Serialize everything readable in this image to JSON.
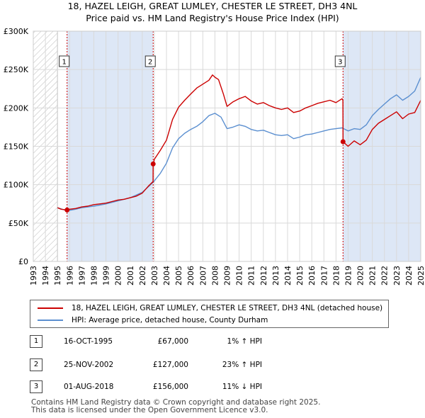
{
  "title_line1": "18, HAZEL LEIGH, GREAT LUMLEY, CHESTER LE STREET, DH3 4NL",
  "title_line2": "Price paid vs. HM Land Registry's House Price Index (HPI)",
  "colors": {
    "property": "#cc0000",
    "hpi": "#5b8fd0",
    "shade": "#dde7f6",
    "grid": "#d9d9d9",
    "marker_line": "#cc0000"
  },
  "chart_data": {
    "type": "line",
    "title": "18, HAZEL LEIGH, GREAT LUMLEY, CHESTER LE STREET, DH3 4NL — Price paid vs. HM Land Registry's House Price Index (HPI)",
    "xlabel": "",
    "ylabel": "",
    "xlim": [
      1993,
      2025
    ],
    "ylim": [
      0,
      300000
    ],
    "x_ticks": [
      "1993",
      "1994",
      "1995",
      "1996",
      "1997",
      "1998",
      "1999",
      "2000",
      "2001",
      "2002",
      "2003",
      "2004",
      "2005",
      "2006",
      "2007",
      "2008",
      "2009",
      "2010",
      "2011",
      "2012",
      "2013",
      "2014",
      "2015",
      "2016",
      "2017",
      "2018",
      "2019",
      "2020",
      "2021",
      "2022",
      "2023",
      "2024",
      "2025"
    ],
    "y_ticks": [
      {
        "value": 0,
        "label": "£0"
      },
      {
        "value": 50000,
        "label": "£50K"
      },
      {
        "value": 100000,
        "label": "£100K"
      },
      {
        "value": 150000,
        "label": "£150K"
      },
      {
        "value": 200000,
        "label": "£200K"
      },
      {
        "value": 250000,
        "label": "£250K"
      },
      {
        "value": 300000,
        "label": "£300K"
      }
    ],
    "hatched_range": [
      1993,
      1995.0
    ],
    "shaded_ranges": [
      [
        1995.79,
        2002.9
      ],
      [
        2018.58,
        2025
      ]
    ],
    "sale_markers": [
      {
        "label": "1",
        "x": 1995.79,
        "y": 67000
      },
      {
        "label": "2",
        "x": 2002.9,
        "y": 127000
      },
      {
        "label": "3",
        "x": 2018.58,
        "y": 156000
      }
    ],
    "series": [
      {
        "name": "18, HAZEL LEIGH, GREAT LUMLEY, CHESTER LE STREET, DH3 4NL (detached house)",
        "color": "#cc0000",
        "points": [
          [
            1995.0,
            70000
          ],
          [
            1995.3,
            68000
          ],
          [
            1995.79,
            67000
          ],
          [
            1996.0,
            68000
          ],
          [
            1996.5,
            69000
          ],
          [
            1997.0,
            71000
          ],
          [
            1997.5,
            72000
          ],
          [
            1998.0,
            74000
          ],
          [
            1998.5,
            75000
          ],
          [
            1999.0,
            76000
          ],
          [
            1999.5,
            78000
          ],
          [
            2000.0,
            80000
          ],
          [
            2000.5,
            81000
          ],
          [
            2001.0,
            83000
          ],
          [
            2001.5,
            85000
          ],
          [
            2002.0,
            89000
          ],
          [
            2002.5,
            98000
          ],
          [
            2002.89,
            104000
          ],
          [
            2002.9,
            127000
          ],
          [
            2003.0,
            133000
          ],
          [
            2003.5,
            145000
          ],
          [
            2004.0,
            158000
          ],
          [
            2004.5,
            185000
          ],
          [
            2005.0,
            201000
          ],
          [
            2005.5,
            210000
          ],
          [
            2006.0,
            218000
          ],
          [
            2006.5,
            226000
          ],
          [
            2007.0,
            231000
          ],
          [
            2007.5,
            236000
          ],
          [
            2007.8,
            243000
          ],
          [
            2008.0,
            240000
          ],
          [
            2008.3,
            237000
          ],
          [
            2008.7,
            218000
          ],
          [
            2009.0,
            202000
          ],
          [
            2009.5,
            208000
          ],
          [
            2010.0,
            212000
          ],
          [
            2010.5,
            215000
          ],
          [
            2011.0,
            209000
          ],
          [
            2011.5,
            205000
          ],
          [
            2012.0,
            207000
          ],
          [
            2012.5,
            203000
          ],
          [
            2013.0,
            200000
          ],
          [
            2013.5,
            198000
          ],
          [
            2014.0,
            200000
          ],
          [
            2014.5,
            194000
          ],
          [
            2015.0,
            196000
          ],
          [
            2015.5,
            200000
          ],
          [
            2016.0,
            203000
          ],
          [
            2016.5,
            206000
          ],
          [
            2017.0,
            208000
          ],
          [
            2017.5,
            210000
          ],
          [
            2018.0,
            207000
          ],
          [
            2018.5,
            212000
          ],
          [
            2018.57,
            210000
          ],
          [
            2018.58,
            156000
          ],
          [
            2019.0,
            150000
          ],
          [
            2019.5,
            157000
          ],
          [
            2020.0,
            152000
          ],
          [
            2020.5,
            158000
          ],
          [
            2021.0,
            172000
          ],
          [
            2021.5,
            180000
          ],
          [
            2022.0,
            185000
          ],
          [
            2022.5,
            190000
          ],
          [
            2023.0,
            195000
          ],
          [
            2023.5,
            186000
          ],
          [
            2024.0,
            192000
          ],
          [
            2024.5,
            194000
          ],
          [
            2025.0,
            210000
          ]
        ]
      },
      {
        "name": "HPI: Average price, detached house, County Durham",
        "color": "#5b8fd0",
        "points": [
          [
            1995.0,
            70000
          ],
          [
            1995.79,
            66000
          ],
          [
            1996.5,
            68000
          ],
          [
            1997.0,
            70000
          ],
          [
            1998.0,
            72000
          ],
          [
            1999.0,
            75000
          ],
          [
            2000.0,
            79000
          ],
          [
            2001.0,
            83000
          ],
          [
            2002.0,
            90000
          ],
          [
            2002.9,
            103000
          ],
          [
            2003.5,
            115000
          ],
          [
            2004.0,
            128000
          ],
          [
            2004.5,
            148000
          ],
          [
            2005.0,
            160000
          ],
          [
            2005.5,
            167000
          ],
          [
            2006.0,
            172000
          ],
          [
            2006.5,
            176000
          ],
          [
            2007.0,
            182000
          ],
          [
            2007.5,
            190000
          ],
          [
            2008.0,
            193000
          ],
          [
            2008.5,
            188000
          ],
          [
            2009.0,
            173000
          ],
          [
            2009.5,
            175000
          ],
          [
            2010.0,
            178000
          ],
          [
            2010.5,
            176000
          ],
          [
            2011.0,
            172000
          ],
          [
            2011.5,
            170000
          ],
          [
            2012.0,
            171000
          ],
          [
            2012.5,
            168000
          ],
          [
            2013.0,
            165000
          ],
          [
            2013.5,
            164000
          ],
          [
            2014.0,
            165000
          ],
          [
            2014.5,
            160000
          ],
          [
            2015.0,
            162000
          ],
          [
            2015.5,
            165000
          ],
          [
            2016.0,
            166000
          ],
          [
            2016.5,
            168000
          ],
          [
            2017.0,
            170000
          ],
          [
            2017.5,
            172000
          ],
          [
            2018.0,
            173000
          ],
          [
            2018.5,
            174000
          ],
          [
            2019.0,
            170000
          ],
          [
            2019.5,
            173000
          ],
          [
            2020.0,
            172000
          ],
          [
            2020.5,
            178000
          ],
          [
            2021.0,
            190000
          ],
          [
            2021.5,
            198000
          ],
          [
            2022.0,
            205000
          ],
          [
            2022.5,
            212000
          ],
          [
            2023.0,
            217000
          ],
          [
            2023.5,
            210000
          ],
          [
            2024.0,
            215000
          ],
          [
            2024.5,
            222000
          ],
          [
            2025.0,
            240000
          ]
        ]
      }
    ]
  },
  "legend": [
    {
      "label": "18, HAZEL LEIGH, GREAT LUMLEY, CHESTER LE STREET, DH3 4NL (detached house)",
      "color": "#cc0000"
    },
    {
      "label": "HPI: Average price, detached house, County Durham",
      "color": "#5b8fd0"
    }
  ],
  "sales": [
    {
      "num": "1",
      "date": "16-OCT-1995",
      "price": "£67,000",
      "hpi": "1% ↑ HPI"
    },
    {
      "num": "2",
      "date": "25-NOV-2002",
      "price": "£127,000",
      "hpi": "23% ↑ HPI"
    },
    {
      "num": "3",
      "date": "01-AUG-2018",
      "price": "£156,000",
      "hpi": "11% ↓ HPI"
    }
  ],
  "footer_line1": "Contains HM Land Registry data © Crown copyright and database right 2025.",
  "footer_line2": "This data is licensed under the Open Government Licence v3.0."
}
